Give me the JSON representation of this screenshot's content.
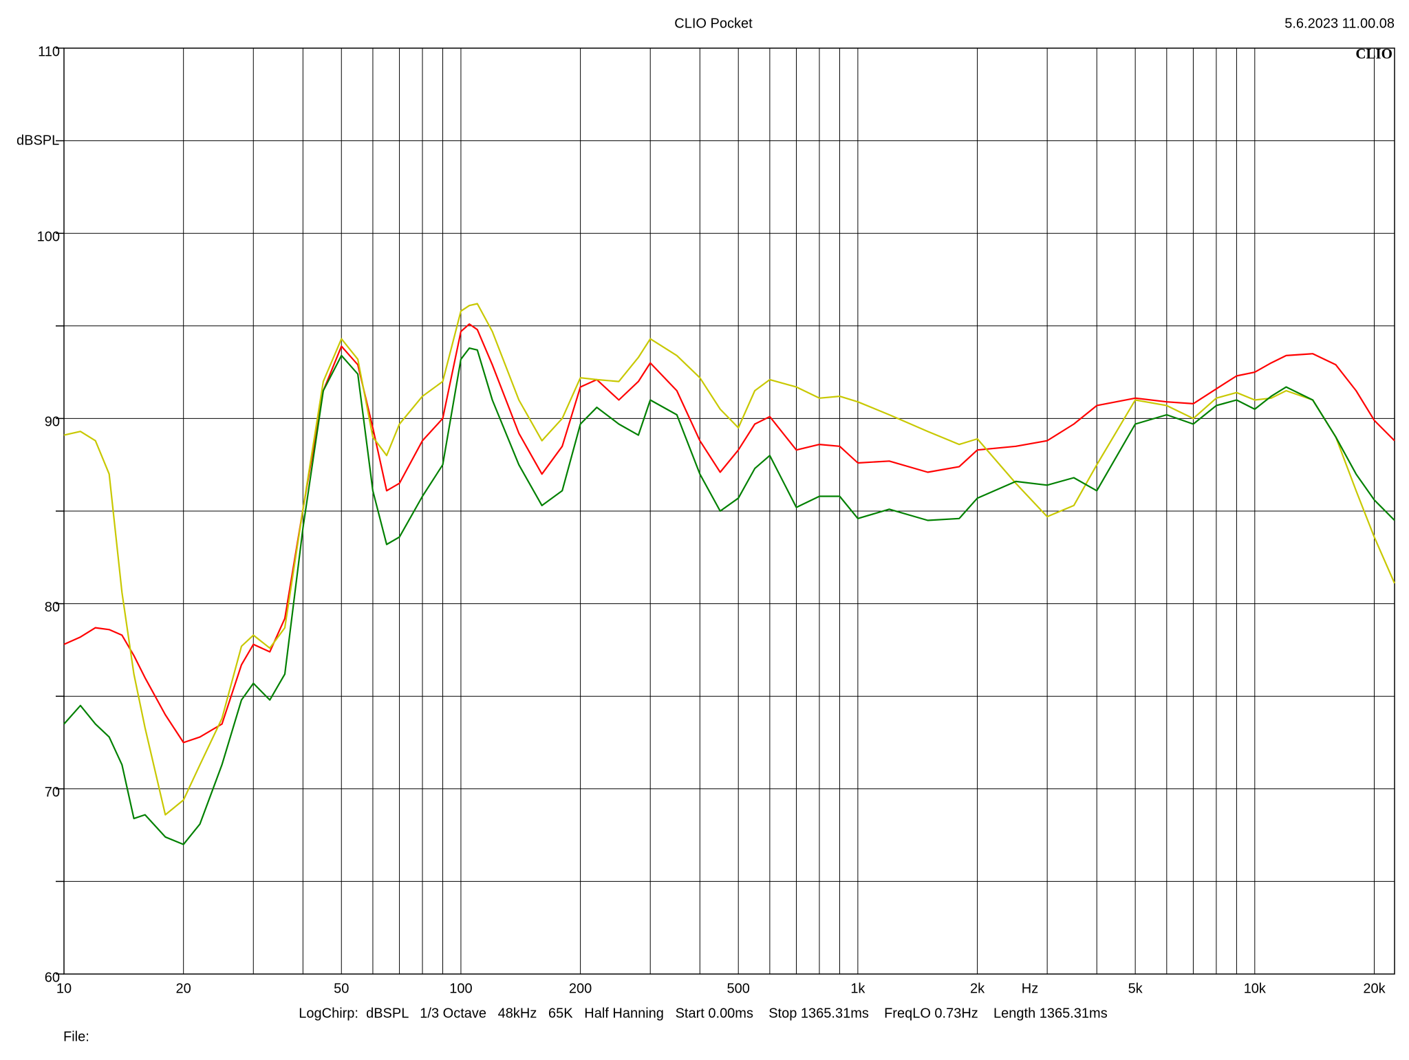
{
  "chart_data": {
    "type": "line",
    "title": "CLIO Pocket",
    "timestamp": "5.6.2023 11.00.08",
    "logo": "CLIO",
    "ylabel": "dBSPL",
    "xlabel": "Hz",
    "footer": "LogChirp:  dBSPL   1/3 Octave   48kHz   65K   Half Hanning   Start 0.00ms    Stop 1365.31ms    FreqLO 0.73Hz    Length 1365.31ms",
    "file_label": "File:",
    "xscale": "log",
    "grid": true,
    "xlim": [
      10,
      22500
    ],
    "ylim": [
      60,
      110
    ],
    "xticks": [
      10,
      20,
      50,
      100,
      200,
      500,
      {
        "value": 1000,
        "label": "1k"
      },
      {
        "value": 2000,
        "label": "2k"
      },
      {
        "value": 5000,
        "label": "5k"
      },
      {
        "value": 10000,
        "label": "10k"
      },
      {
        "value": 20000,
        "label": "20k"
      }
    ],
    "xminor": [
      30,
      40,
      60,
      70,
      80,
      90,
      300,
      400,
      600,
      700,
      800,
      900,
      3000,
      4000,
      6000,
      7000,
      8000,
      9000
    ],
    "yticks": [
      60,
      70,
      80,
      90,
      100,
      110
    ],
    "yminor": [
      65,
      75,
      85,
      95,
      105
    ],
    "x": [
      10,
      11,
      12,
      13,
      14,
      15,
      16,
      18,
      20,
      22,
      25,
      28,
      30,
      33,
      36,
      40,
      45,
      50,
      55,
      60,
      65,
      70,
      80,
      90,
      100,
      105,
      110,
      120,
      140,
      160,
      180,
      200,
      220,
      250,
      280,
      300,
      350,
      400,
      450,
      500,
      550,
      600,
      700,
      800,
      900,
      1000,
      1200,
      1500,
      1800,
      2000,
      2500,
      3000,
      3500,
      4000,
      5000,
      6000,
      7000,
      8000,
      9000,
      10000,
      11000,
      12000,
      14000,
      16000,
      18000,
      20000,
      22500
    ],
    "series": [
      {
        "color": "#ff0000",
        "values": [
          77.8,
          78.2,
          78.7,
          78.6,
          78.3,
          77.2,
          76.0,
          74.0,
          72.5,
          72.8,
          73.5,
          76.7,
          77.8,
          77.4,
          79.2,
          85.1,
          91.5,
          93.9,
          92.9,
          89.5,
          86.1,
          86.5,
          88.8,
          90.0,
          94.7,
          95.1,
          94.8,
          92.9,
          89.2,
          87.0,
          88.5,
          91.7,
          92.1,
          91.0,
          92.0,
          93.0,
          91.5,
          88.8,
          87.1,
          88.3,
          89.7,
          90.1,
          88.3,
          88.6,
          88.5,
          87.6,
          87.7,
          87.1,
          87.4,
          88.3,
          88.5,
          88.8,
          89.7,
          90.7,
          91.1,
          90.9,
          90.8,
          91.6,
          92.3,
          92.5,
          93.0,
          93.4,
          93.5,
          92.9,
          91.5,
          89.9,
          88.8
        ]
      },
      {
        "color": "#c8c800",
        "values": [
          89.1,
          89.3,
          88.8,
          87.0,
          80.6,
          76.2,
          73.3,
          68.6,
          69.4,
          71.3,
          73.8,
          77.7,
          78.3,
          77.6,
          78.7,
          85.1,
          92.0,
          94.3,
          93.2,
          89.0,
          88.0,
          89.7,
          91.2,
          92.0,
          95.8,
          96.1,
          96.2,
          94.7,
          91.0,
          88.8,
          90.0,
          92.2,
          92.1,
          92.0,
          93.3,
          94.3,
          93.4,
          92.2,
          90.5,
          89.5,
          91.5,
          92.1,
          91.7,
          91.1,
          91.2,
          90.9,
          90.2,
          89.3,
          88.6,
          88.9,
          86.5,
          84.7,
          85.3,
          87.5,
          91.0,
          90.7,
          90.0,
          91.1,
          91.4,
          91.0,
          91.1,
          91.5,
          91.0,
          89.0,
          86.1,
          83.6,
          81.1
        ]
      },
      {
        "color": "#008000",
        "values": [
          73.5,
          74.5,
          73.5,
          72.8,
          71.3,
          68.4,
          68.6,
          67.4,
          67.0,
          68.1,
          71.3,
          74.8,
          75.7,
          74.8,
          76.2,
          84.1,
          91.5,
          93.4,
          92.4,
          86.1,
          83.2,
          83.6,
          85.8,
          87.5,
          93.2,
          93.8,
          93.7,
          91.0,
          87.5,
          85.3,
          86.1,
          89.7,
          90.6,
          89.7,
          89.1,
          91.0,
          90.2,
          87.0,
          85.0,
          85.7,
          87.3,
          88.0,
          85.2,
          85.8,
          85.8,
          84.6,
          85.1,
          84.5,
          84.6,
          85.7,
          86.6,
          86.4,
          86.8,
          86.1,
          89.7,
          90.2,
          89.7,
          90.7,
          91.0,
          90.5,
          91.2,
          91.7,
          91.0,
          89.0,
          87.0,
          85.6,
          84.5
        ]
      }
    ]
  }
}
